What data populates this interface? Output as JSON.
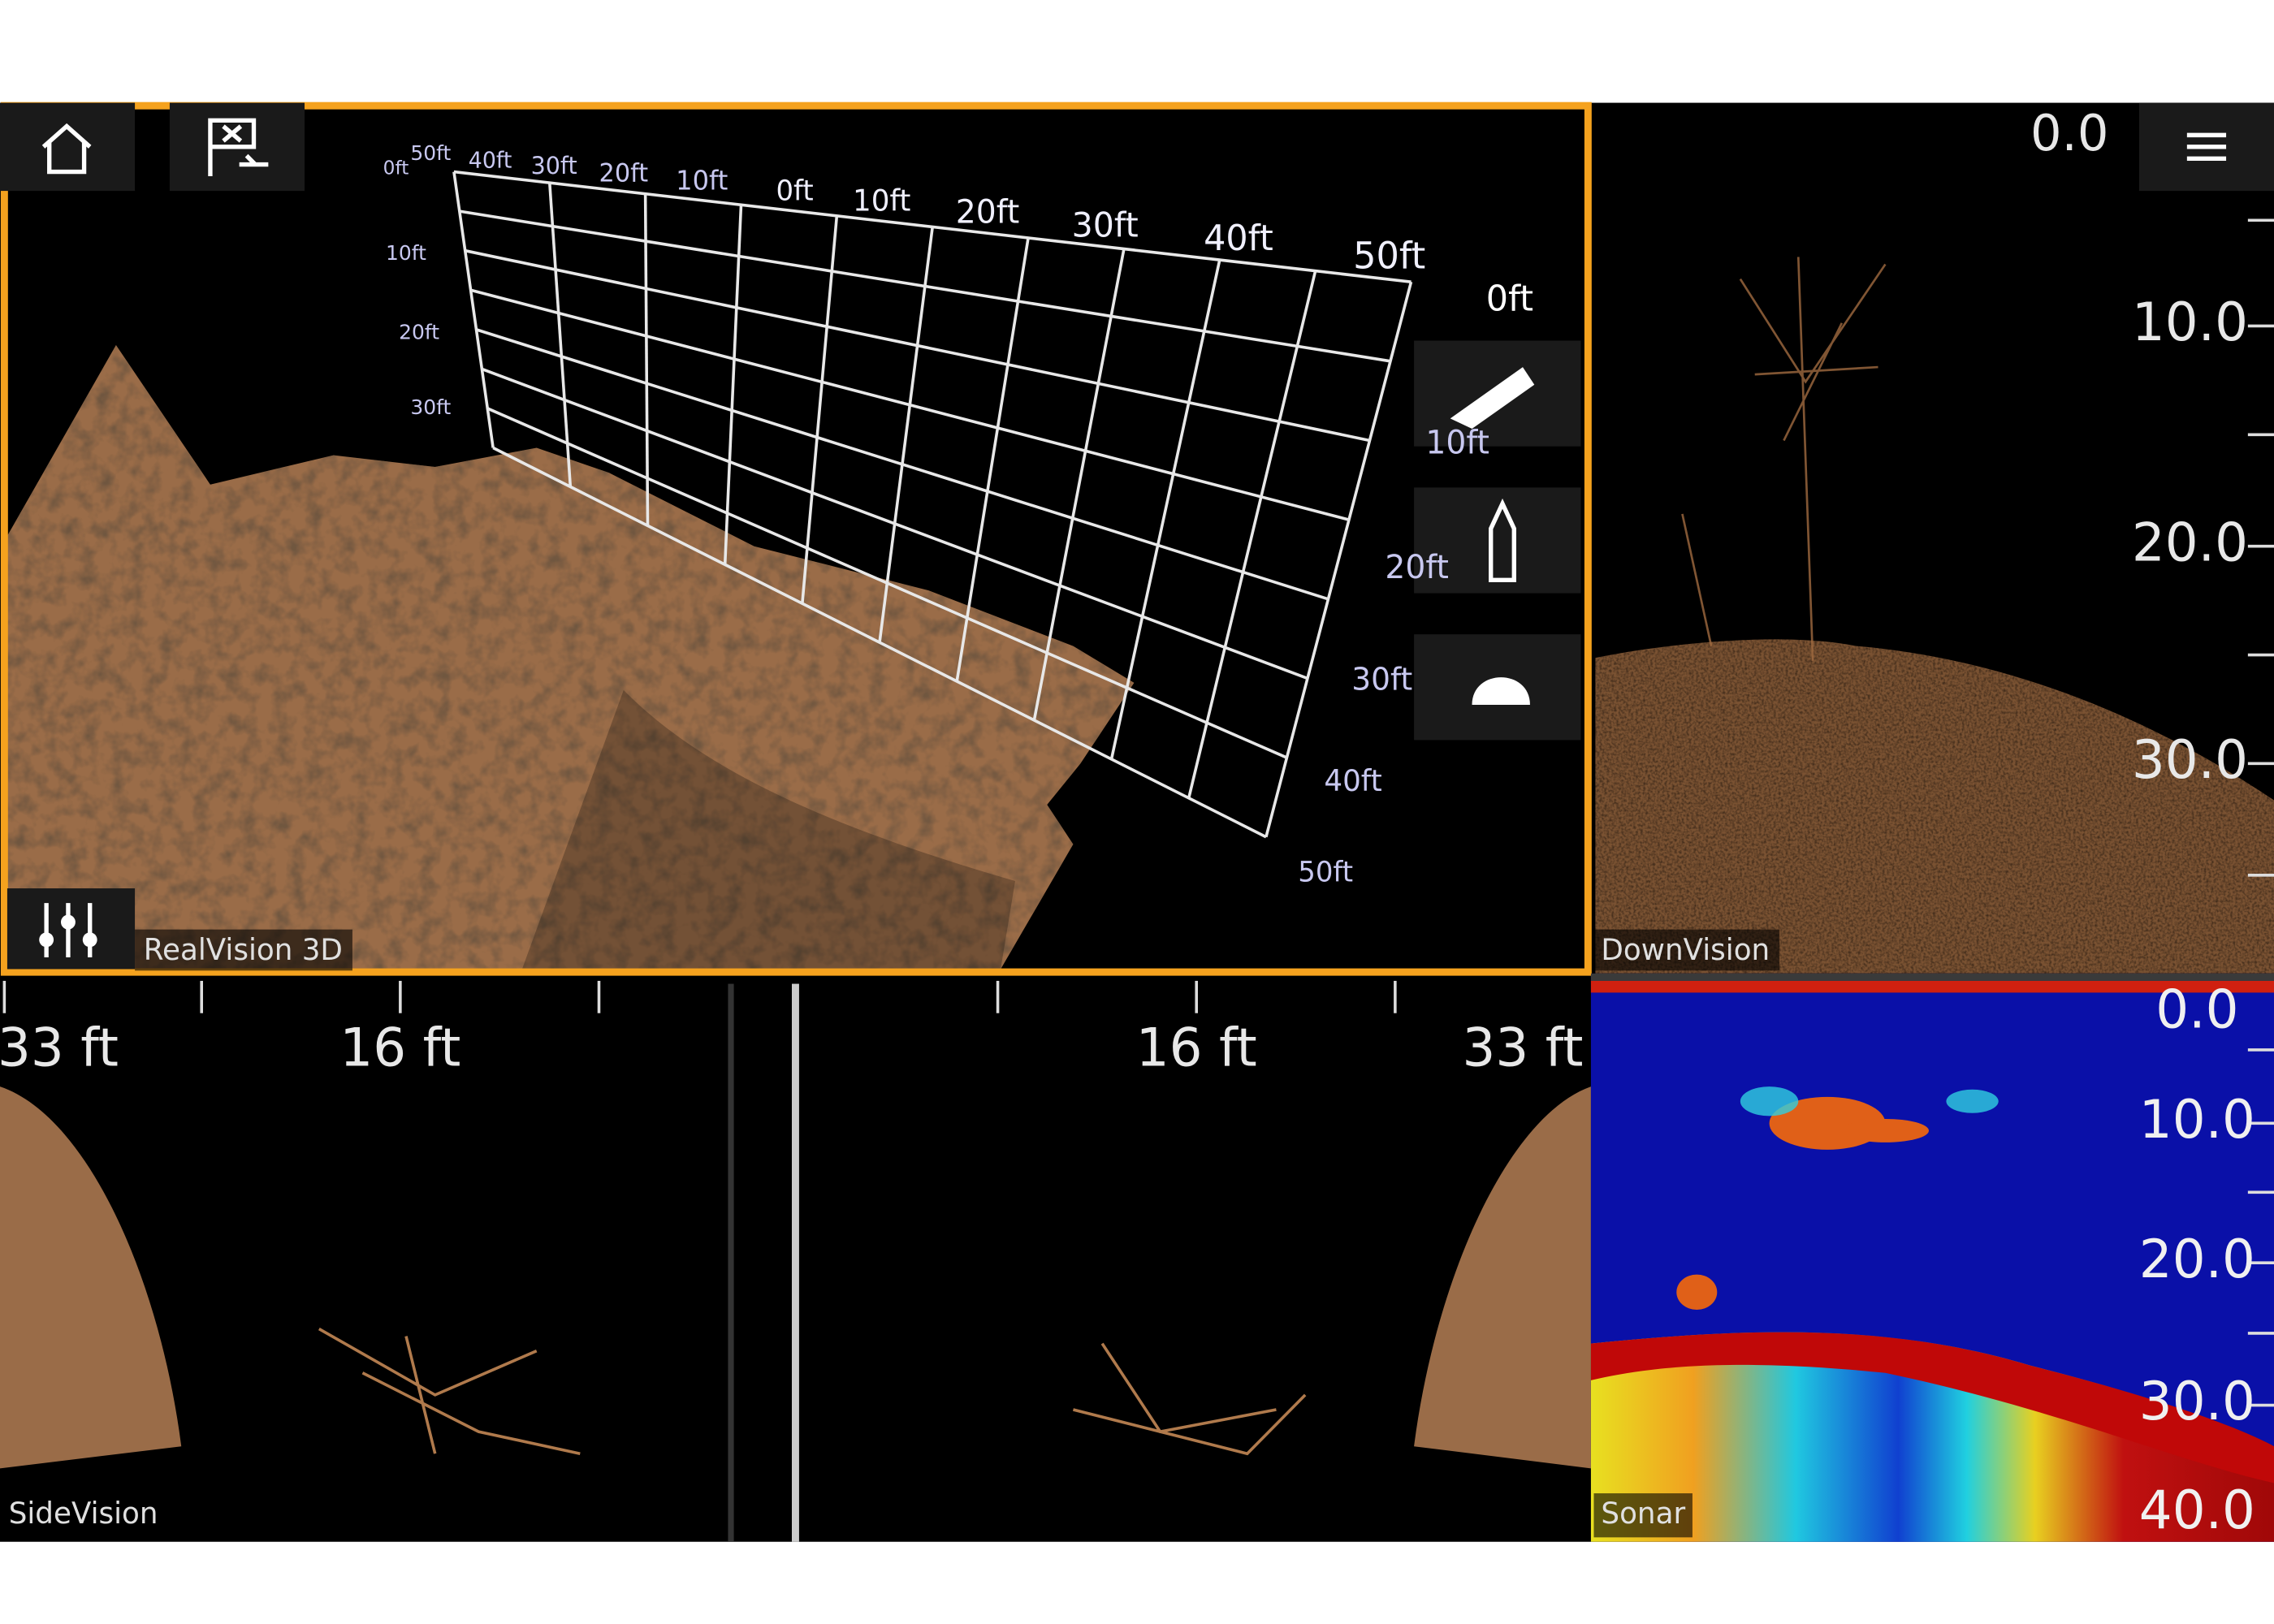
{
  "realvision": {
    "label": "RealVision 3D",
    "grid_top_labels": [
      "0ft",
      "50ft",
      "40ft",
      "30ft",
      "20ft",
      "10ft",
      "0ft",
      "10ft",
      "20ft",
      "30ft",
      "40ft",
      "50ft"
    ],
    "grid_left_labels": [
      "10ft",
      "20ft",
      "30ft"
    ],
    "grid_right_labels": [
      "0ft",
      "10ft",
      "20ft",
      "30ft",
      "40ft",
      "50ft"
    ]
  },
  "downvision": {
    "label": "DownVision",
    "depth_readout": "0.0",
    "depth_scale": [
      "10.0",
      "20.0",
      "30.0"
    ]
  },
  "sidevision": {
    "label": "SideVision",
    "range_labels": [
      "33 ft",
      "16 ft",
      "16 ft",
      "33 ft"
    ]
  },
  "sonar": {
    "label": "Sonar",
    "depth_scale": [
      "0.0",
      "10.0",
      "20.0",
      "30.0",
      "40.0"
    ]
  }
}
